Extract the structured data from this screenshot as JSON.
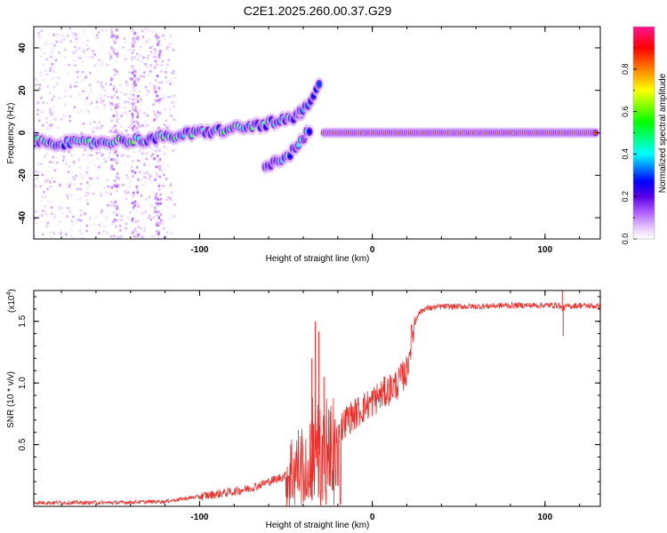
{
  "title": "C2E1.2025.260.00.37.G29",
  "chart_data": [
    {
      "type": "heatmap",
      "name": "spectrogram",
      "xlabel": "Height of straight line (km)",
      "ylabel": "Frequency (Hz)",
      "xlim": [
        -196,
        132
      ],
      "ylim": [
        -50,
        50
      ],
      "xticks": [
        -100,
        0,
        100
      ],
      "yticks": [
        -40,
        -20,
        0,
        20,
        40
      ],
      "colorbar": {
        "label": "Normalized spectral amplitude",
        "range": [
          0.0,
          1.0
        ],
        "ticks": [
          0.0,
          0.2,
          0.4,
          0.6,
          0.8
        ],
        "tick_labels": [
          "0.0",
          "0.2",
          "0.4",
          "0.6",
          "0.8"
        ],
        "colormap": [
          "#ffffff",
          "#e9ccff",
          "#b266ff",
          "#5a00e6",
          "#0000ff",
          "#00ffff",
          "#00ff00",
          "#ffff00",
          "#ff8000",
          "#ff0000",
          "#ff1493"
        ]
      },
      "tracks": [
        {
          "name": "main-track",
          "x": [
            -196,
            -170,
            -150,
            -130,
            -110,
            -90,
            -70,
            -55,
            -45,
            -40
          ],
          "y": [
            -4,
            -5,
            -4,
            -3,
            -1,
            1,
            3,
            5,
            7,
            9
          ],
          "amplitude": 0.45
        },
        {
          "name": "upper-branch",
          "x": [
            -42,
            -38,
            -35,
            -32,
            -30
          ],
          "y": [
            10,
            12,
            15,
            20,
            25
          ],
          "amplitude": 0.35
        },
        {
          "name": "lower-branch",
          "x": [
            -62,
            -55,
            -50,
            -45,
            -40,
            -36
          ],
          "y": [
            -15,
            -13,
            -11,
            -8,
            -3,
            2
          ],
          "amplitude": 0.35
        },
        {
          "name": "stable-track",
          "x": [
            -28,
            0,
            40,
            80,
            130
          ],
          "y": [
            0,
            0,
            0,
            0,
            0
          ],
          "amplitude": 0.95
        }
      ],
      "noise_band": {
        "x_range": [
          -196,
          -115
        ],
        "y_range": [
          -50,
          50
        ]
      }
    },
    {
      "type": "line",
      "name": "snr",
      "xlabel": "Height of straight line (km)",
      "ylabel": "SNR (10 * v/v)",
      "multiplier_label": "(x10",
      "multiplier_exp": "4",
      "multiplier_close": ")",
      "xlim": [
        -196,
        132
      ],
      "ylim": [
        0,
        1.75
      ],
      "xticks": [
        -100,
        0,
        100
      ],
      "yticks": [
        0.5,
        1.0,
        1.5
      ],
      "ytick_labels": [
        "0.5",
        "1.0",
        "1.5"
      ],
      "color": "#e8302c",
      "envelope": {
        "x": [
          -196,
          -150,
          -120,
          -100,
          -80,
          -70,
          -60,
          -50,
          -45,
          -40,
          -36,
          -34,
          -32,
          -30,
          -28,
          -25,
          -20,
          -15,
          -10,
          -5,
          0,
          5,
          10,
          15,
          20,
          22,
          24,
          26,
          28,
          30,
          40,
          60,
          80,
          100,
          108,
          110,
          112,
          120,
          132
        ],
        "y": [
          0.03,
          0.03,
          0.04,
          0.08,
          0.12,
          0.15,
          0.2,
          0.25,
          0.3,
          0.35,
          0.45,
          0.6,
          0.5,
          0.45,
          0.5,
          0.55,
          0.6,
          0.7,
          0.75,
          0.8,
          0.85,
          0.9,
          0.95,
          1.0,
          1.1,
          1.3,
          1.45,
          1.55,
          1.58,
          1.6,
          1.62,
          1.62,
          1.63,
          1.63,
          1.63,
          1.6,
          1.62,
          1.63,
          1.62
        ]
      },
      "spikes": [
        {
          "x": -33,
          "y": 1.5
        },
        {
          "x": -31,
          "y": 1.42
        },
        {
          "x": -35,
          "y": 1.2
        },
        {
          "x": -28,
          "y": 1.05
        },
        {
          "x": 110,
          "y": 1.75
        },
        {
          "x": 110.5,
          "y": 1.38
        }
      ]
    }
  ]
}
